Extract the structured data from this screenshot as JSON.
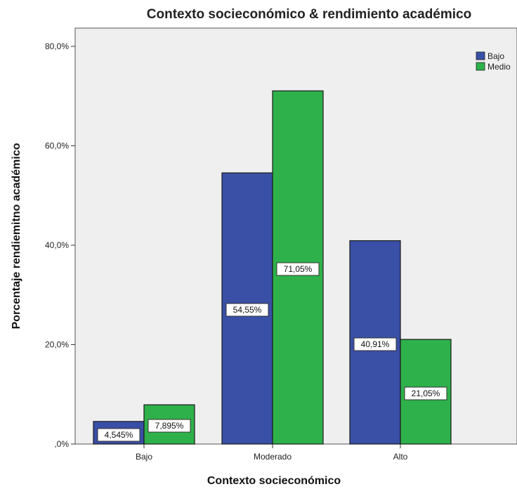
{
  "chart_data": {
    "type": "bar",
    "title": "Contexto socieconómico & rendimiento académico",
    "xlabel": "Contexto socieconómico",
    "ylabel": "Porcentaje rendiemitno académico",
    "categories": [
      "Bajo",
      "Moderado",
      "Alto"
    ],
    "series": [
      {
        "name": "Bajo",
        "color": "#3a4fa6",
        "values": [
          4.545,
          54.55,
          40.91
        ],
        "labels": [
          "4,545%",
          "54,55%",
          "40,91%"
        ]
      },
      {
        "name": "Medio",
        "color": "#2eb14a",
        "values": [
          7.895,
          71.05,
          21.05
        ],
        "labels": [
          "7,895%",
          "71,05%",
          "21,05%"
        ]
      }
    ],
    "ylim": [
      0,
      80
    ],
    "yticks": [
      0,
      20,
      40,
      60,
      80
    ],
    "ytick_labels": [
      ",0%",
      "20,0%",
      "40,0%",
      "60,0%",
      "80,0%"
    ],
    "grid": false,
    "legend_position": "top-right",
    "plot_background": "#efefef"
  }
}
